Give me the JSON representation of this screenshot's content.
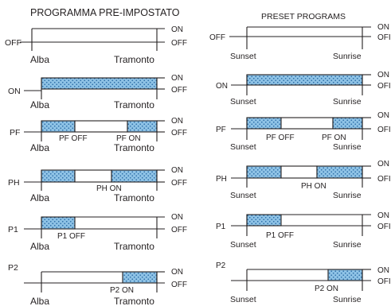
{
  "colors": {
    "dot_fill": "#8fc3e6",
    "dot_dots": "#2f6fa8",
    "ink": "#231f20"
  },
  "left": {
    "title": "PROGRAMMA PRE-IMPOSTATO",
    "start_label": "Alba",
    "end_label": "Tramonto",
    "on_label": "ON",
    "off_label": "OFF",
    "rows": [
      {
        "label": "OFF",
        "on_from": null,
        "on_to": null,
        "sub_labels": []
      },
      {
        "label": "ON",
        "on_from": 0,
        "on_to": 1,
        "sub_labels": []
      },
      {
        "label": "PF",
        "on_from": 0,
        "on_to": 0.27,
        "on_from2": 0.73,
        "on_to2": 1,
        "sub_labels": [
          "PF OFF",
          "PF ON"
        ]
      },
      {
        "label": "PH",
        "on_from": 0,
        "on_to": 0.27,
        "on_from2": 0.55,
        "on_to2": 1,
        "sub_labels": [
          "PH ON"
        ]
      },
      {
        "label": "P1",
        "on_from": 0,
        "on_to": 0.27,
        "sub_labels": [
          "P1 OFF"
        ]
      },
      {
        "label": "P2",
        "on_from": 0.73,
        "on_to": 1,
        "sub_labels": [
          "P2 ON"
        ]
      }
    ]
  },
  "right": {
    "title": "PRESET PROGRAMS",
    "start_label": "Sunset",
    "end_label": "Sunrise",
    "on_label": "ON",
    "off_label": "OFI",
    "rows": [
      {
        "label": "OFF",
        "on_from": null,
        "on_to": null,
        "sub_labels": []
      },
      {
        "label": "ON",
        "on_from": 0,
        "on_to": 1,
        "sub_labels": []
      },
      {
        "label": "PF",
        "on_from": 0,
        "on_to": 0.29,
        "on_from2": 0.74,
        "on_to2": 1,
        "sub_labels": [
          "PF OFF",
          "PF ON"
        ]
      },
      {
        "label": "PH",
        "on_from": 0,
        "on_to": 0.29,
        "on_from2": 0.61,
        "on_to2": 1,
        "sub_labels": [
          "PH ON"
        ]
      },
      {
        "label": "P1",
        "on_from": 0,
        "on_to": 0.29,
        "sub_labels": [
          "P1 OFF"
        ]
      },
      {
        "label": "P2",
        "on_from": 0.72,
        "on_to": 1,
        "sub_labels": [
          "P2 ON"
        ]
      }
    ]
  }
}
